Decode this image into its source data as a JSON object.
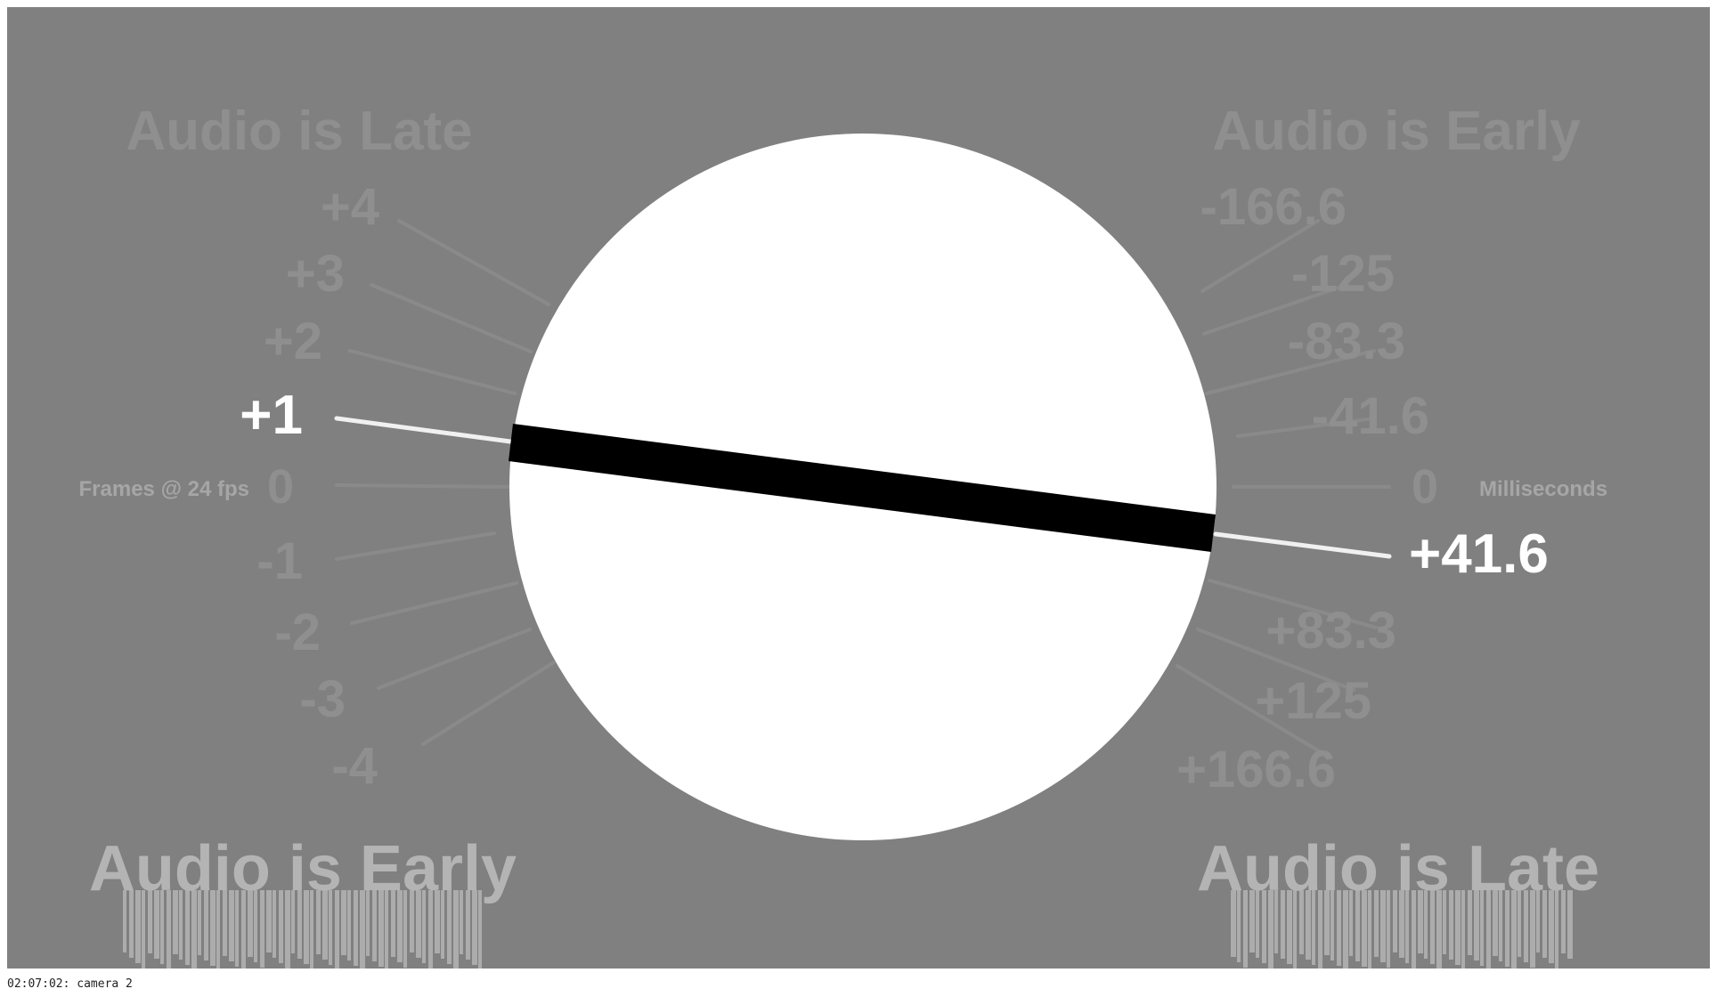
{
  "frame": {
    "background_color": "#808080",
    "dial_color": "#ffffff",
    "bar_color": "#000000",
    "faded_color": "#8f8f8f",
    "active_color": "#ffffff",
    "smear_color": "#b4b4b4"
  },
  "headings": {
    "top_left": "Audio is Late",
    "top_right": "Audio is Early",
    "bottom_left": "Audio is Early",
    "bottom_right": "Audio is Late"
  },
  "units": {
    "frames": "Frames @ 24 fps",
    "milliseconds": "Milliseconds"
  },
  "frame_offsets": [
    "+4",
    "+3",
    "+2",
    "+1",
    "0",
    "-1",
    "-2",
    "-3",
    "-4"
  ],
  "ms_offsets": [
    "-166.6",
    "-125",
    "-83.3",
    "-41.6",
    "0",
    "+41.6",
    "+83.3",
    "+125",
    "+166.6"
  ],
  "highlight": {
    "frame_value": "+1",
    "ms_value": "+41.6"
  },
  "caption": "02:07:02: camera 2"
}
